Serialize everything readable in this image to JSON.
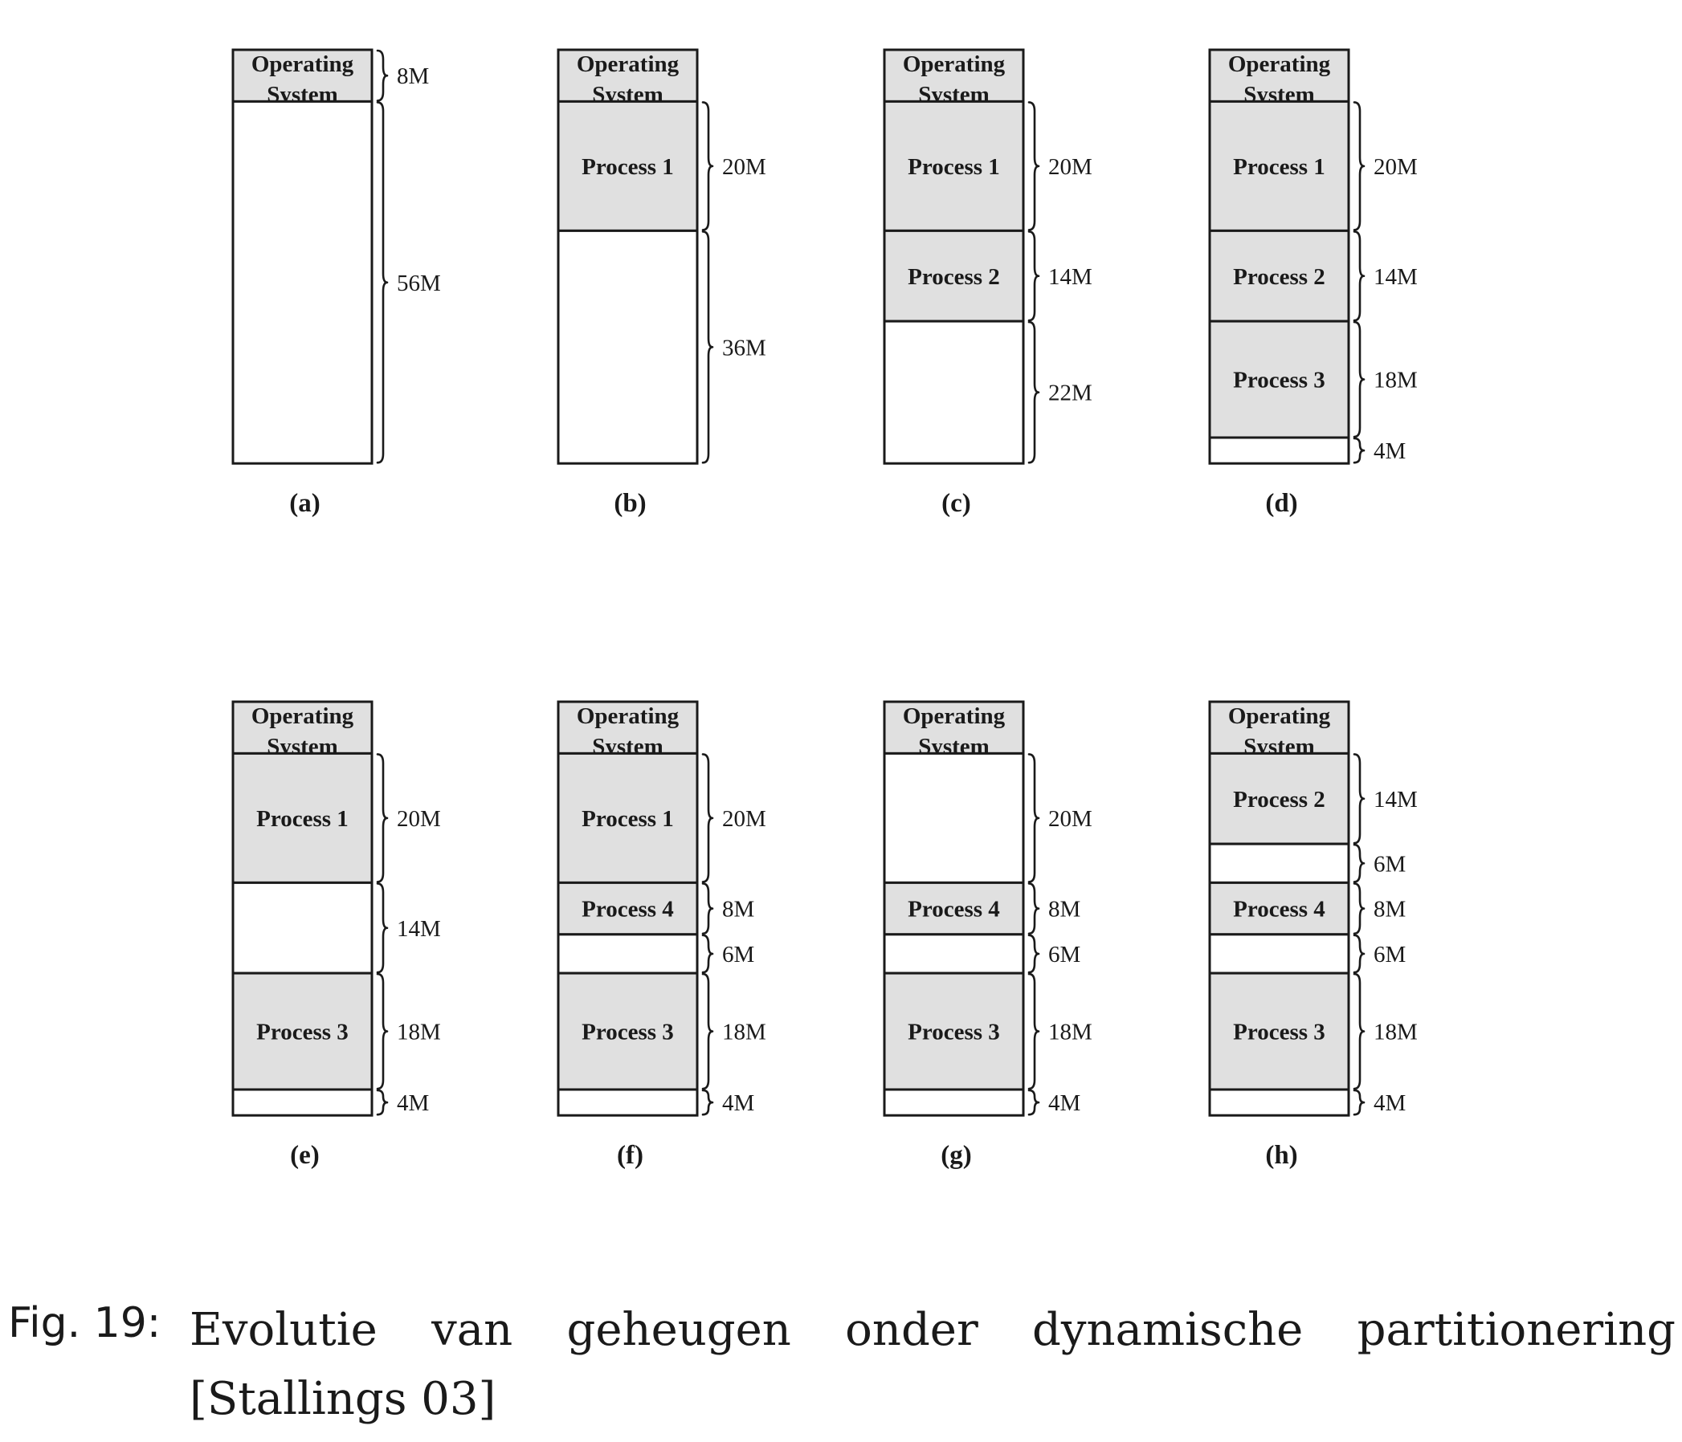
{
  "figure": {
    "colors": {
      "used": "#e0e0e0",
      "free": "#ffffff",
      "stroke": "#1a1a1a"
    },
    "panels": [
      {
        "label": "(a)",
        "blocks": [
          {
            "text": "Operating System",
            "size": 8,
            "size_label": "8M",
            "used": true
          },
          {
            "text": "",
            "size": 56,
            "size_label": "56M",
            "used": false
          }
        ]
      },
      {
        "label": "(b)",
        "blocks": [
          {
            "text": "Operating System",
            "size": 8,
            "size_label": "",
            "used": true
          },
          {
            "text": "Process 1",
            "size": 20,
            "size_label": "20M",
            "used": true
          },
          {
            "text": "",
            "size": 36,
            "size_label": "36M",
            "used": false
          }
        ]
      },
      {
        "label": "(c)",
        "blocks": [
          {
            "text": "Operating System",
            "size": 8,
            "size_label": "",
            "used": true
          },
          {
            "text": "Process 1",
            "size": 20,
            "size_label": "20M",
            "used": true
          },
          {
            "text": "Process 2",
            "size": 14,
            "size_label": "14M",
            "used": true
          },
          {
            "text": "",
            "size": 22,
            "size_label": "22M",
            "used": false
          }
        ]
      },
      {
        "label": "(d)",
        "blocks": [
          {
            "text": "Operating System",
            "size": 8,
            "size_label": "",
            "used": true
          },
          {
            "text": "Process 1",
            "size": 20,
            "size_label": "20M",
            "used": true
          },
          {
            "text": "Process 2",
            "size": 14,
            "size_label": "14M",
            "used": true
          },
          {
            "text": "Process 3",
            "size": 18,
            "size_label": "18M",
            "used": true
          },
          {
            "text": "",
            "size": 4,
            "size_label": "4M",
            "used": false
          }
        ]
      },
      {
        "label": "(e)",
        "blocks": [
          {
            "text": "Operating System",
            "size": 8,
            "size_label": "",
            "used": true
          },
          {
            "text": "Process 1",
            "size": 20,
            "size_label": "20M",
            "used": true
          },
          {
            "text": "",
            "size": 14,
            "size_label": "14M",
            "used": false
          },
          {
            "text": "Process 3",
            "size": 18,
            "size_label": "18M",
            "used": true
          },
          {
            "text": "",
            "size": 4,
            "size_label": "4M",
            "used": false
          }
        ]
      },
      {
        "label": "(f)",
        "blocks": [
          {
            "text": "Operating System",
            "size": 8,
            "size_label": "",
            "used": true
          },
          {
            "text": "Process 1",
            "size": 20,
            "size_label": "20M",
            "used": true
          },
          {
            "text": "Process 4",
            "size": 8,
            "size_label": "8M",
            "used": true
          },
          {
            "text": "",
            "size": 6,
            "size_label": "6M",
            "used": false
          },
          {
            "text": "Process 3",
            "size": 18,
            "size_label": "18M",
            "used": true
          },
          {
            "text": "",
            "size": 4,
            "size_label": "4M",
            "used": false
          }
        ]
      },
      {
        "label": "(g)",
        "blocks": [
          {
            "text": "Operating System",
            "size": 8,
            "size_label": "",
            "used": true
          },
          {
            "text": "",
            "size": 20,
            "size_label": "20M",
            "used": false
          },
          {
            "text": "Process 4",
            "size": 8,
            "size_label": "8M",
            "used": true
          },
          {
            "text": "",
            "size": 6,
            "size_label": "6M",
            "used": false
          },
          {
            "text": "Process 3",
            "size": 18,
            "size_label": "18M",
            "used": true
          },
          {
            "text": "",
            "size": 4,
            "size_label": "4M",
            "used": false
          }
        ]
      },
      {
        "label": "(h)",
        "blocks": [
          {
            "text": "Operating System",
            "size": 8,
            "size_label": "",
            "used": true
          },
          {
            "text": "Process 2",
            "size": 14,
            "size_label": "14M",
            "used": true
          },
          {
            "text": "",
            "size": 6,
            "size_label": "6M",
            "used": false
          },
          {
            "text": "Process 4",
            "size": 8,
            "size_label": "8M",
            "used": true
          },
          {
            "text": "",
            "size": 6,
            "size_label": "6M",
            "used": false
          },
          {
            "text": "Process 3",
            "size": 18,
            "size_label": "18M",
            "used": true
          },
          {
            "text": "",
            "size": 4,
            "size_label": "4M",
            "used": false
          }
        ]
      }
    ]
  },
  "caption": {
    "prefix": "Fig. 19:",
    "text": "Evolutie van geheugen onder dynamische partitionering [Stallings 03]"
  }
}
